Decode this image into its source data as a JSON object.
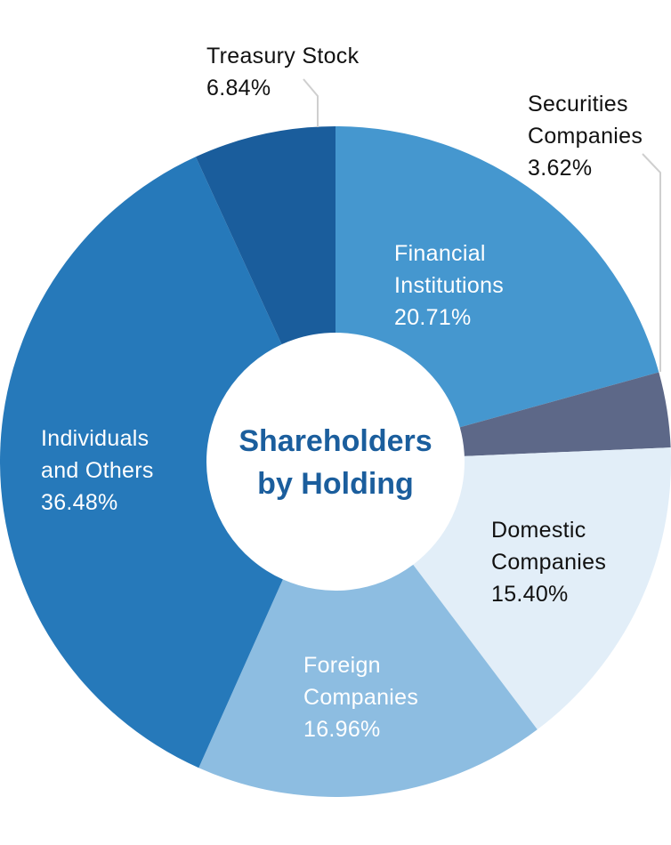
{
  "chart_data": {
    "type": "pie",
    "style": "donut",
    "center_title": [
      "Shareholders",
      "by Holding"
    ],
    "slices": [
      {
        "id": "financial-institutions",
        "label": [
          "Financial",
          "Institutions"
        ],
        "value": 20.71,
        "value_text": "20.71%",
        "color": "#4597cf",
        "label_color": "#ffffff"
      },
      {
        "id": "securities-companies",
        "label": [
          "Securities",
          "Companies"
        ],
        "value": 3.62,
        "value_text": "3.62%",
        "color": "#5d6888",
        "label_color": "#111111"
      },
      {
        "id": "domestic-companies",
        "label": [
          "Domestic",
          "Companies"
        ],
        "value": 15.4,
        "value_text": "15.40%",
        "color": "#e2eef8",
        "label_color": "#111111"
      },
      {
        "id": "foreign-companies",
        "label": [
          "Foreign",
          "Companies"
        ],
        "value": 16.96,
        "value_text": "16.96%",
        "color": "#8dbde1",
        "label_color": "#ffffff"
      },
      {
        "id": "individuals-and-others",
        "label": [
          "Individuals",
          "and Others"
        ],
        "value": 36.48,
        "value_text": "36.48%",
        "color": "#2679ba",
        "label_color": "#ffffff"
      },
      {
        "id": "treasury-stock",
        "label": [
          "Treasury Stock"
        ],
        "value": 6.84,
        "value_text": "6.84%",
        "color": "#1a5d9c",
        "label_color": "#111111"
      }
    ],
    "title_color": "#1b5e9d",
    "leader_line_color": "#cfcfcf"
  }
}
